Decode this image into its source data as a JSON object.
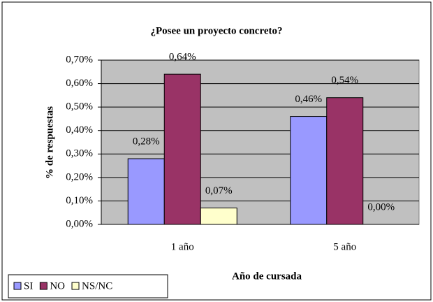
{
  "chart_data": {
    "type": "bar",
    "title": "¿Posee un proyecto concreto?",
    "y_label": "% de respuestas",
    "x_label": "Año de cursada",
    "categories": [
      "1 año",
      "5 año"
    ],
    "series": [
      {
        "name": "SI",
        "color": "#9999ff",
        "values": [
          0.28,
          0.46
        ],
        "value_labels": [
          "0,28%",
          "0,46%"
        ]
      },
      {
        "name": "NO",
        "color": "#993366",
        "values": [
          0.64,
          0.54
        ],
        "value_labels": [
          "0,64%",
          "0,54%"
        ]
      },
      {
        "name": "NS/NC",
        "color": "#ffffcc",
        "values": [
          0.07,
          0
        ],
        "value_labels": [
          "0,07%",
          "0,00%"
        ]
      }
    ],
    "ylim": [
      0,
      0.7
    ],
    "yticks": [
      {
        "value": 0,
        "label": "0,00%"
      },
      {
        "value": 0.1,
        "label": "0,10%"
      },
      {
        "value": 0.2,
        "label": "0,20%"
      },
      {
        "value": 0.3,
        "label": "0,30%"
      },
      {
        "value": 0.4,
        "label": "0,40%"
      },
      {
        "value": 0.5,
        "label": "0,50%"
      },
      {
        "value": 0.6,
        "label": "0,60%"
      },
      {
        "value": 0.7,
        "label": "0,70%"
      }
    ],
    "grid": true,
    "legend": "bottom-left"
  }
}
